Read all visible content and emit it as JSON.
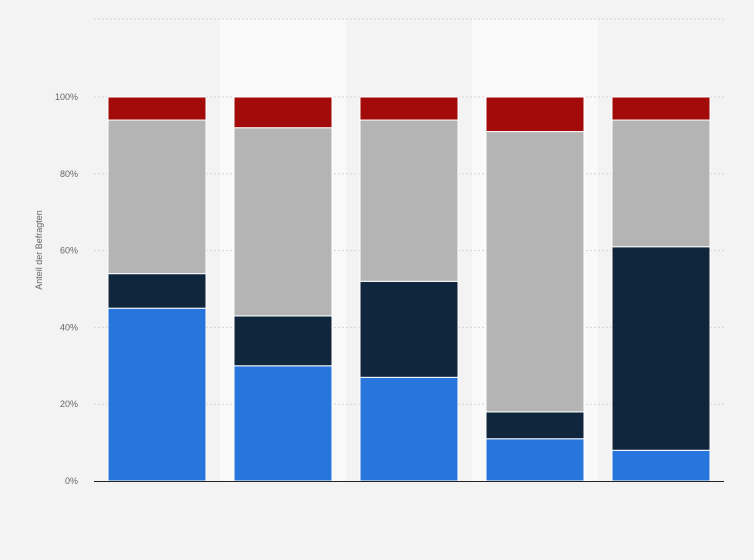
{
  "chart_data": {
    "type": "bar",
    "stacked": true,
    "title": "",
    "xlabel": "",
    "ylabel": "Anteil der Befragten",
    "ylim": [
      0,
      100
    ],
    "yticks": [
      0,
      20,
      40,
      60,
      80,
      100
    ],
    "ytick_labels": [
      "0%",
      "20%",
      "40%",
      "60%",
      "80%",
      "100%"
    ],
    "grid": true,
    "legend": "none",
    "categories": [
      "",
      "",
      "",
      "",
      ""
    ],
    "series": [
      {
        "color": "#2876dd",
        "values": [
          45,
          30,
          27,
          11,
          8
        ]
      },
      {
        "color": "#10263d",
        "values": [
          9,
          13,
          25,
          7,
          53
        ]
      },
      {
        "color": "#b4b4b4",
        "values": [
          40,
          49,
          42,
          73,
          33
        ]
      },
      {
        "color": "#a30a0a",
        "values": [
          6,
          8,
          6,
          9,
          6
        ]
      }
    ]
  }
}
